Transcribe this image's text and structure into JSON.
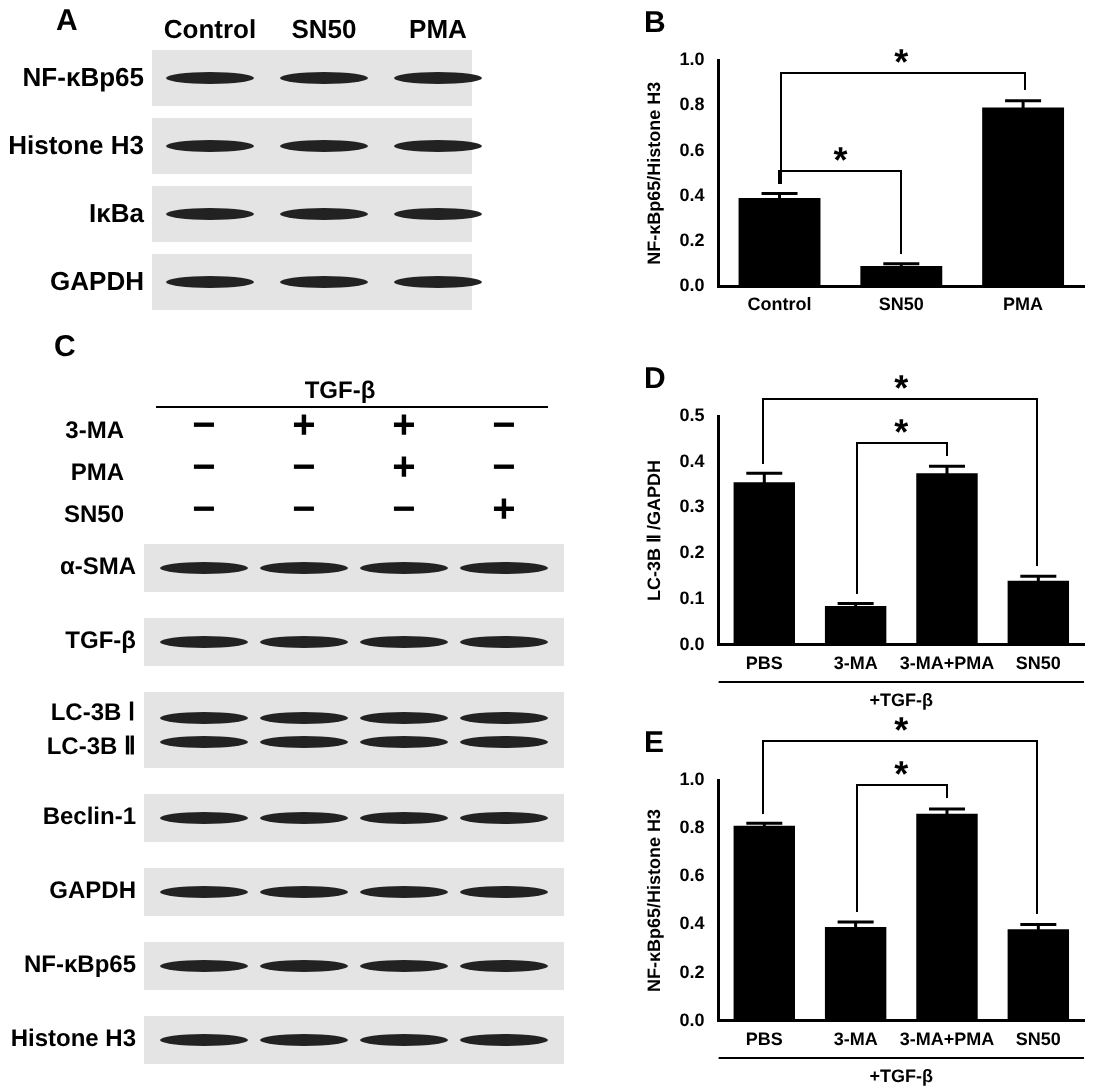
{
  "chart_data": [
    {
      "type": "other",
      "title": "A",
      "categories": [
        "Control",
        "SN50",
        "PMA"
      ],
      "y_categories": [
        [
          "NF-κBp65"
        ],
        [
          "Histone H3"
        ],
        [
          "IκBa"
        ],
        [
          "GAPDH"
        ]
      ]
    },
    {
      "type": "bar",
      "title": "B",
      "ylabel": "NF-κBp65/Histone H3",
      "categories": [
        "Control",
        "SN50",
        "PMA"
      ],
      "values": [
        0.39,
        0.09,
        0.79
      ],
      "errors": [
        0.02,
        0.01,
        0.03
      ],
      "color": "#000000",
      "ylim": [
        0,
        1
      ],
      "yticks": [
        {
          "value": 0,
          "label": "0.0"
        },
        {
          "value": 0.2,
          "label": "0.2"
        },
        {
          "value": 0.4,
          "label": "0.4"
        },
        {
          "value": 0.6,
          "label": "0.6"
        },
        {
          "value": 0.8,
          "label": "0.8"
        },
        {
          "value": 1,
          "label": "1.0"
        }
      ],
      "annotations": [
        "*",
        "*"
      ]
    },
    {
      "type": "other",
      "title": "C",
      "subtitle": "TGF-β",
      "y2_categories": [
        "3-MA",
        "PMA",
        "SN50"
      ],
      "cell_labels": [
        [
          "−",
          "+",
          "+",
          "−"
        ],
        [
          "−",
          "−",
          "+",
          "−"
        ],
        [
          "−",
          "−",
          "−",
          "+"
        ]
      ],
      "y_categories": [
        [
          "α-SMA"
        ],
        [
          "TGF-β"
        ],
        [
          "LC-3B Ⅰ",
          "LC-3B Ⅱ"
        ],
        [
          "Beclin-1"
        ],
        [
          "GAPDH"
        ],
        [
          "NF-κBp65"
        ],
        [
          "Histone H3"
        ]
      ]
    },
    {
      "type": "bar",
      "title": "D",
      "ylabel": "LC-3B Ⅱ /GAPDH",
      "xlabel": "+TGF-β",
      "categories": [
        "PBS",
        "3-MA",
        "3-MA+PMA",
        "SN50"
      ],
      "values": [
        0.355,
        0.085,
        0.375,
        0.14
      ],
      "errors": [
        0.02,
        0.005,
        0.015,
        0.01
      ],
      "color": "#000000",
      "ylim": [
        0,
        0.5
      ],
      "yticks": [
        {
          "value": 0,
          "label": "0.0"
        },
        0.1,
        0.2,
        0.3,
        0.4,
        0.5
      ],
      "annotations": [
        "*",
        "*"
      ]
    },
    {
      "type": "bar",
      "title": "E",
      "ylabel": "NF-κBp65/Histone H3",
      "xlabel": "+TGF-β",
      "categories": [
        "PBS",
        "3-MA",
        "3-MA+PMA",
        "SN50"
      ],
      "values": [
        0.81,
        0.39,
        0.86,
        0.38
      ],
      "errors": [
        0.01,
        0.02,
        0.02,
        0.02
      ],
      "color": "#000000",
      "ylim": [
        0,
        1
      ],
      "yticks": [
        {
          "value": 0,
          "label": "0.0"
        },
        {
          "value": 0.2,
          "label": "0.2"
        },
        {
          "value": 0.4,
          "label": "0.4"
        },
        {
          "value": 0.6,
          "label": "0.6"
        },
        {
          "value": 0.8,
          "label": "0.8"
        },
        {
          "value": 1,
          "label": "1.0"
        }
      ],
      "annotations": [
        "*",
        "*"
      ]
    }
  ]
}
